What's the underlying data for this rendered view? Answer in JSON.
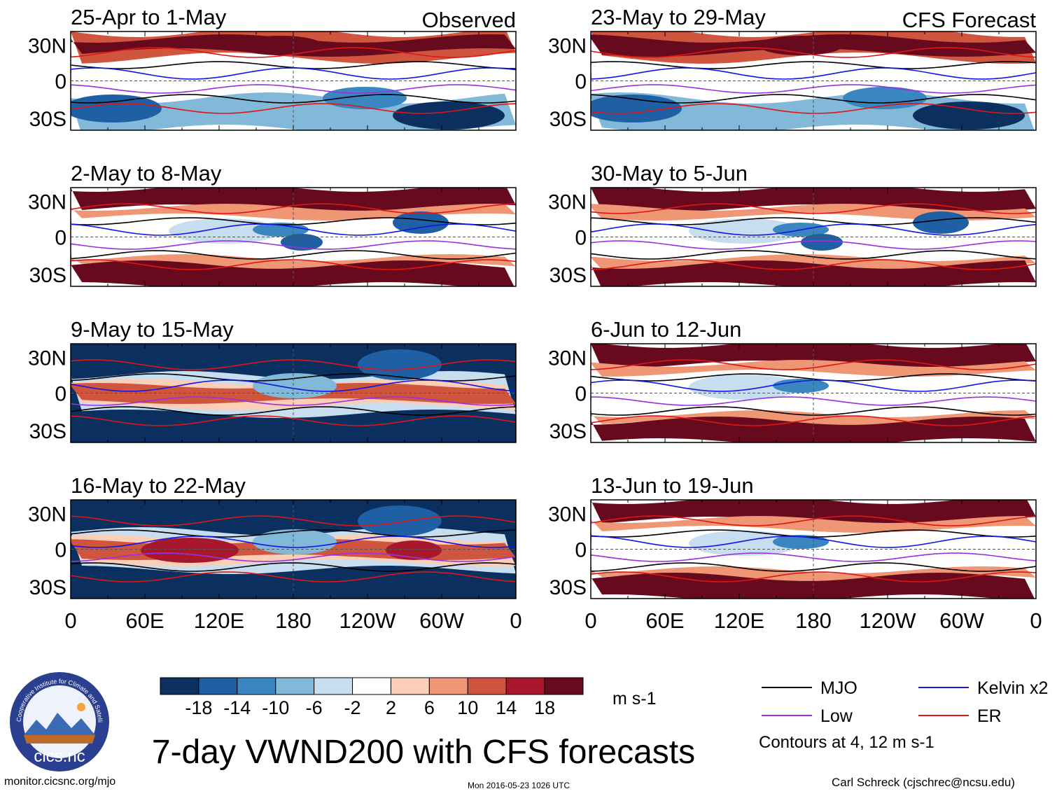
{
  "title": "7-day VWND200 with CFS forecasts",
  "column_labels": {
    "left": "Observed",
    "right": "CFS Forecast"
  },
  "colorbar": {
    "units": "m s-1",
    "tick_labels": [
      "-18",
      "-14",
      "-10",
      "-6",
      "-2",
      "2",
      "6",
      "10",
      "14",
      "18"
    ],
    "colors": [
      "#0b2f5e",
      "#1f5fa4",
      "#3a86c0",
      "#82b8d8",
      "#c7def0",
      "#ffffff",
      "#fbcfb7",
      "#ef9674",
      "#d0553f",
      "#a7182c",
      "#680a1e"
    ]
  },
  "legend": {
    "items": [
      {
        "label": "MJO",
        "color": "#000000"
      },
      {
        "label": "Kelvin x2",
        "color": "#1515e6"
      },
      {
        "label": "Low",
        "color": "#9b30e0"
      },
      {
        "label": "ER",
        "color": "#e01515"
      }
    ],
    "note": "Contours at 4, 12 m s-1"
  },
  "footer": {
    "url": "monitor.cicsnc.org/mjo",
    "timestamp": "Mon 2016-05-23 1026 UTC",
    "credit": "Carl Schreck (cjschrec@ncsu.edu)"
  },
  "logo": {
    "text": "cics.nc",
    "ring_text": "Cooperative Institute for Climate and Satellites"
  },
  "chart_data": {
    "type": "heatmap",
    "variable": "200-hPa meridional wind anomaly (VWND200)",
    "units": "m s-1",
    "contour_levels": [
      4,
      12
    ],
    "x_ticks": [
      "0",
      "60E",
      "120E",
      "180",
      "120W",
      "60W",
      "0"
    ],
    "y_ticks": [
      "30N",
      "0",
      "30S"
    ],
    "panels": [
      {
        "period": "25-Apr to 1-May",
        "column": "Observed",
        "pattern": "mixed"
      },
      {
        "period": "2-May to 8-May",
        "column": "Observed",
        "pattern": "bands"
      },
      {
        "period": "9-May to 15-May",
        "column": "Observed",
        "pattern": "blue_bands"
      },
      {
        "period": "16-May to 22-May",
        "column": "Observed",
        "pattern": "blue_bands_red_core"
      },
      {
        "period": "23-May to 29-May",
        "column": "CFS Forecast",
        "pattern": "mixed"
      },
      {
        "period": "30-May to 5-Jun",
        "column": "CFS Forecast",
        "pattern": "bands"
      },
      {
        "period": "6-Jun to 12-Jun",
        "column": "CFS Forecast",
        "pattern": "bands_weak"
      },
      {
        "period": "13-Jun to 19-Jun",
        "column": "CFS Forecast",
        "pattern": "bands_weak"
      }
    ]
  }
}
